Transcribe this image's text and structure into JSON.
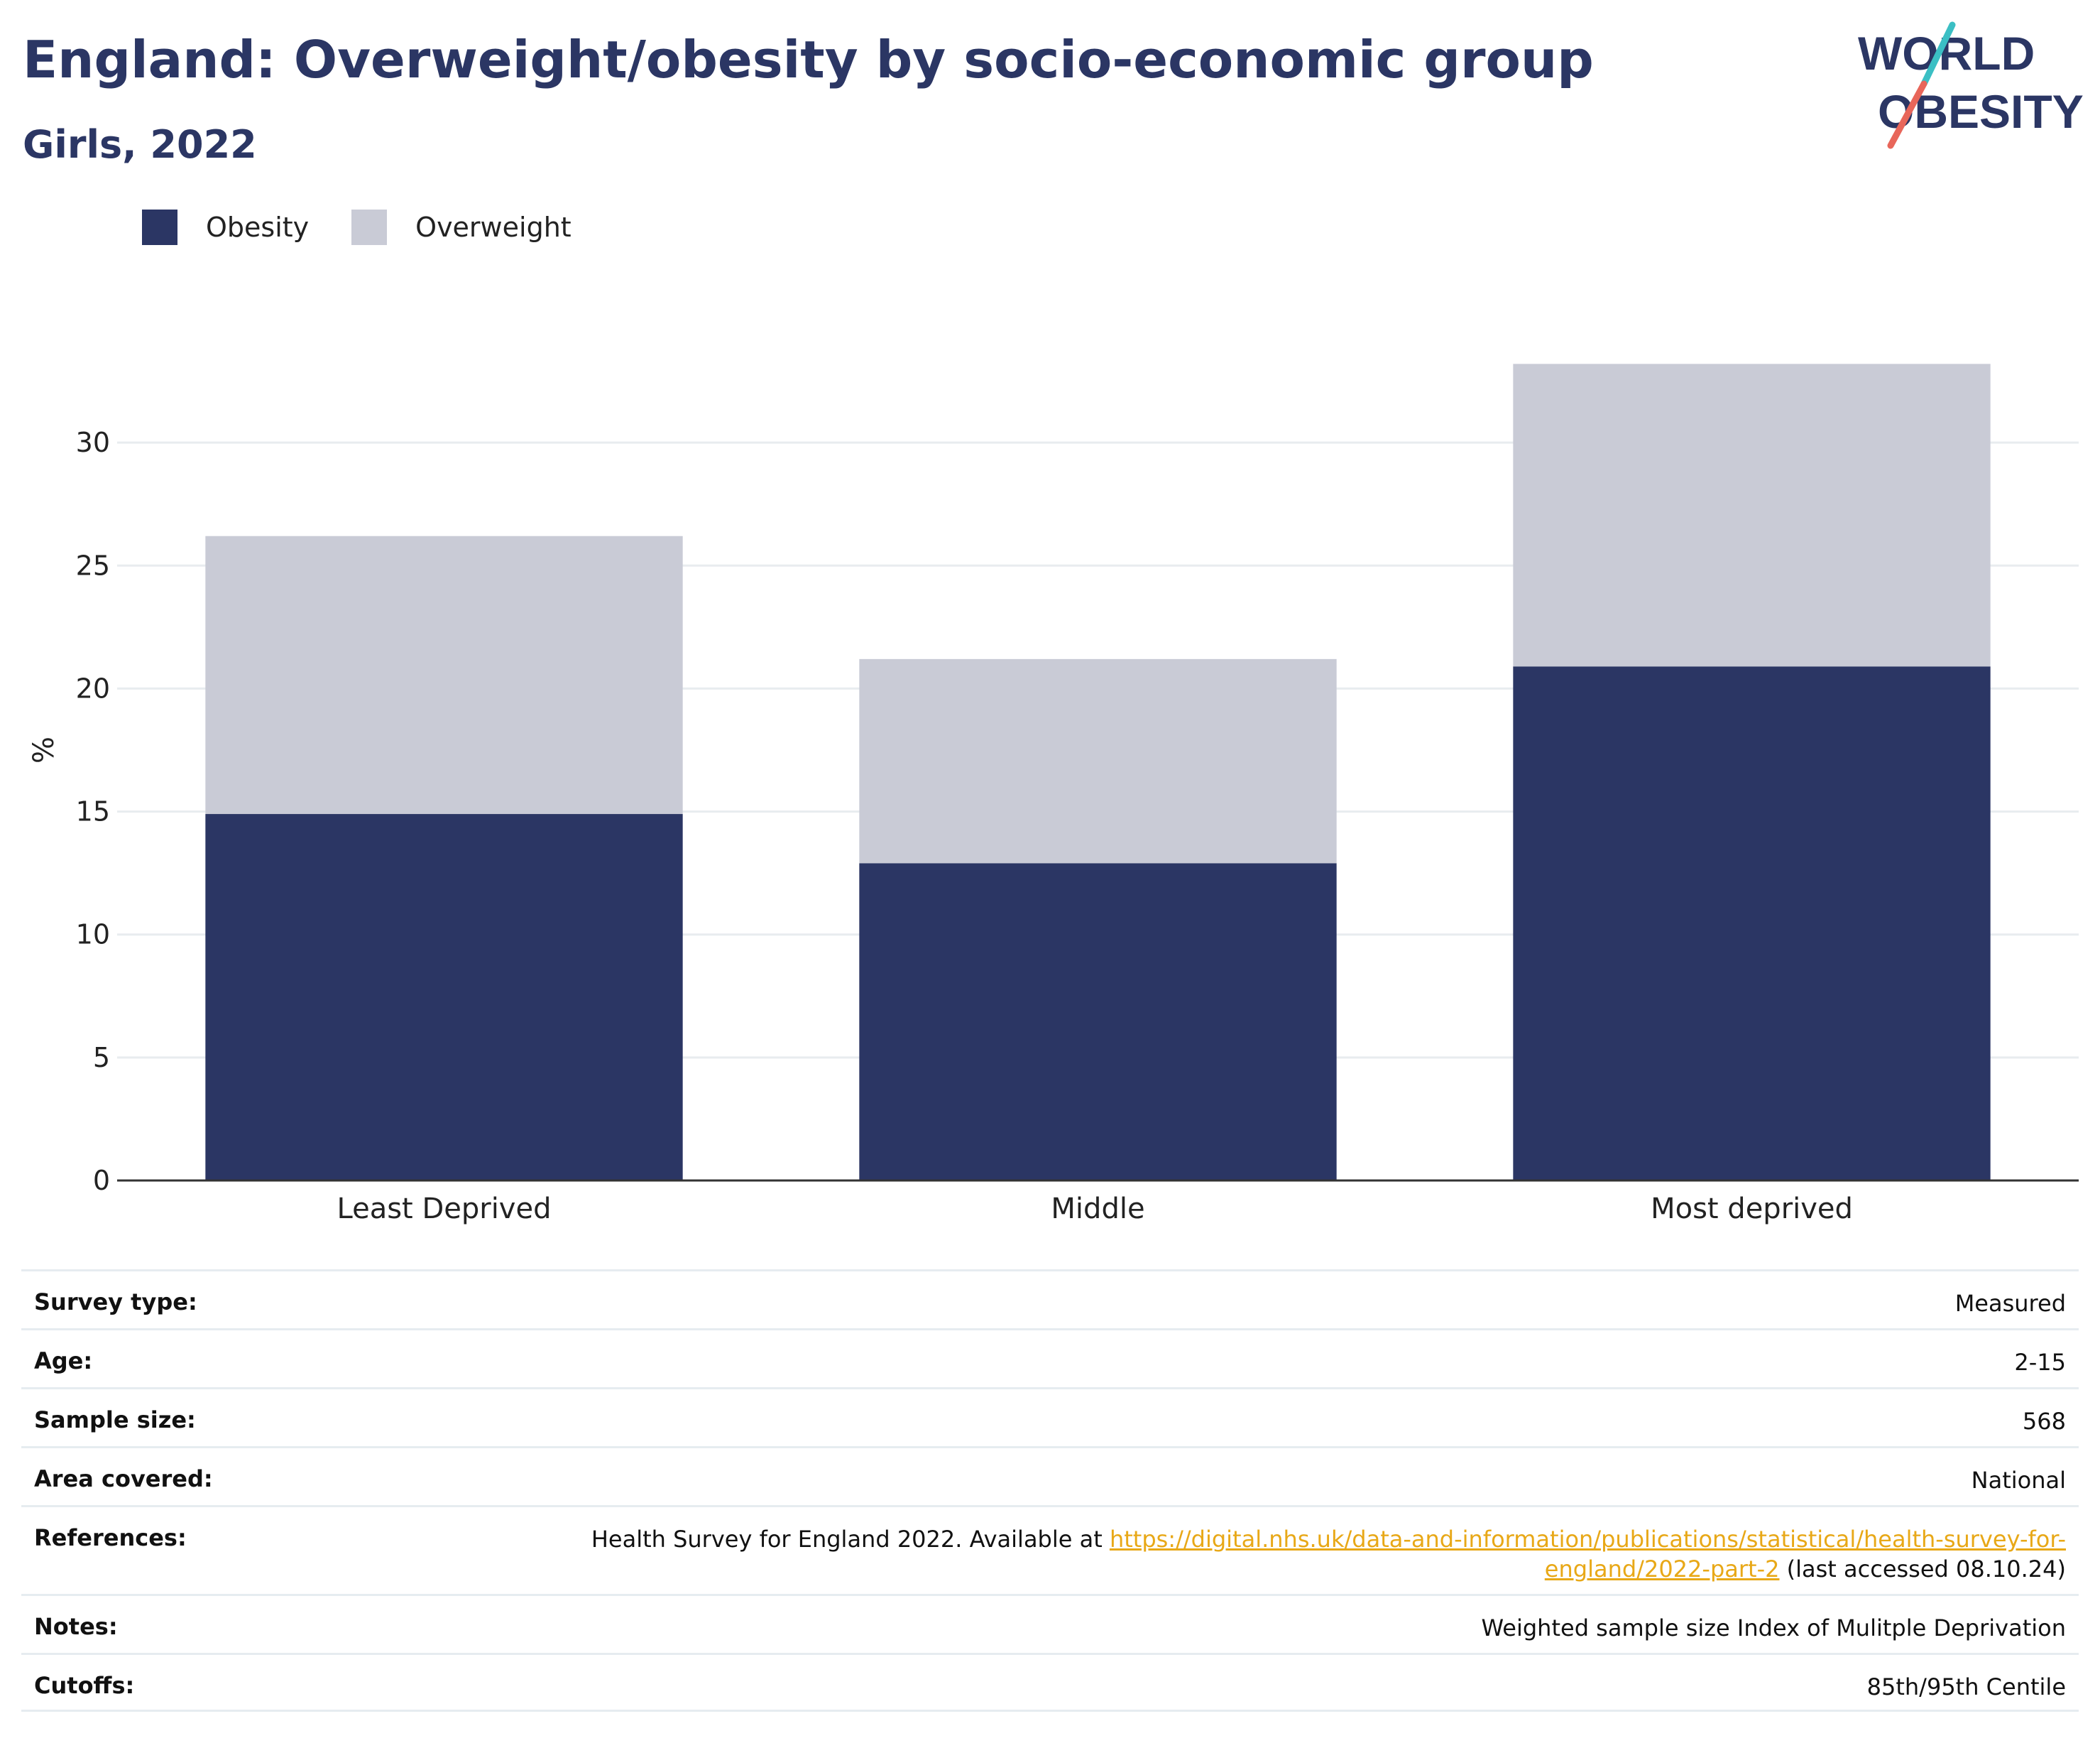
{
  "header": {
    "title": "England: Overweight/obesity by socio-economic group",
    "subtitle": "Girls, 2022"
  },
  "logo": {
    "line1": "WORLD",
    "line2": "OBESITY",
    "colors": {
      "text": "#2b3664",
      "slash_teal": "#3bbfc4",
      "slash_red": "#e8665a"
    }
  },
  "colors": {
    "obesity": "#2b3664",
    "overweight": "#c9cbd6",
    "grid": "#e8ecef",
    "axis": "#333333"
  },
  "chart_data": {
    "type": "bar",
    "stacked": true,
    "categories": [
      "Least Deprived",
      "Middle",
      "Most deprived"
    ],
    "series": [
      {
        "name": "Obesity",
        "values": [
          14.9,
          12.9,
          20.9
        ],
        "color": "#2b3664"
      },
      {
        "name": "Overweight",
        "values": [
          11.3,
          8.3,
          12.3
        ],
        "color": "#c9cbd6"
      }
    ],
    "ylabel": "%",
    "xlabel": "",
    "ylim": [
      0,
      35
    ],
    "yticks": [
      0,
      5,
      10,
      15,
      20,
      25,
      30
    ],
    "grid": true,
    "legend": "top-left"
  },
  "meta": {
    "survey_type": {
      "label": "Survey type:",
      "value": "Measured"
    },
    "age": {
      "label": "Age:",
      "value": "2-15"
    },
    "sample_size": {
      "label": "Sample size:",
      "value": "568"
    },
    "area_covered": {
      "label": "Area covered:",
      "value": "National"
    },
    "references": {
      "label": "References:",
      "prefix": "Health Survey for England 2022. Available at ",
      "link_line1": "https://digital.nhs.uk/data-and-information/publications/statistical/health-survey-for-",
      "link_line2": "england/2022-part-2",
      "suffix": " (last accessed 08.10.24)"
    },
    "notes": {
      "label": "Notes:",
      "value": "Weighted sample size Index of Mulitple Deprivation"
    },
    "cutoffs": {
      "label": "Cutoffs:",
      "value": "85th/95th Centile"
    }
  }
}
